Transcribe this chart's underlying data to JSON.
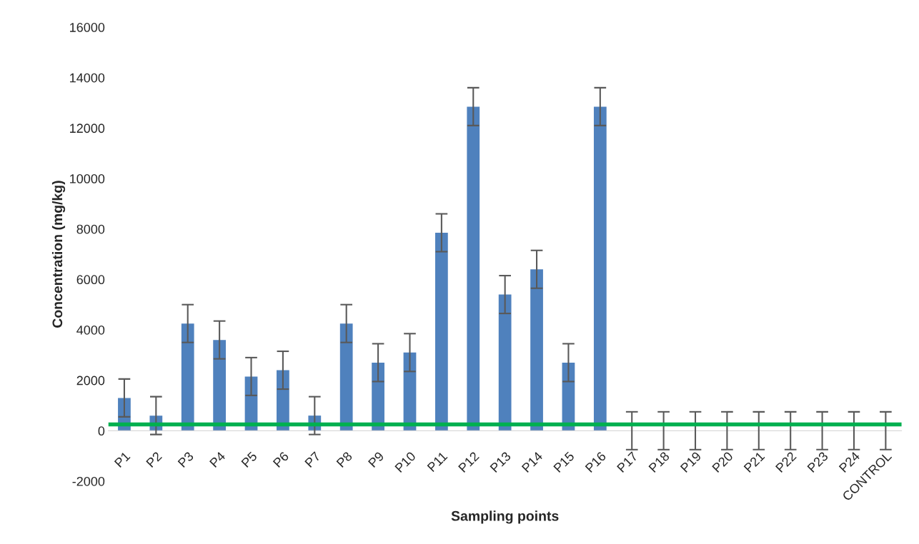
{
  "chart_data": {
    "type": "bar",
    "xlabel": "Sampling points",
    "ylabel": "Concentration (mg/kg)",
    "categories": [
      "P1",
      "P2",
      "P3",
      "P4",
      "P5",
      "P6",
      "P7",
      "P8",
      "P9",
      "P10",
      "P11",
      "P12",
      "P13",
      "P14",
      "P15",
      "P16",
      "P17",
      "P18",
      "P19",
      "P20",
      "P21",
      "P22",
      "P23",
      "P24",
      "CONTROL"
    ],
    "series": [
      {
        "color": "#4f81bd",
        "values": [
          1300,
          600,
          4250,
          3600,
          2150,
          2400,
          600,
          4250,
          2700,
          3100,
          7850,
          12850,
          5400,
          6400,
          2700,
          12850,
          0,
          0,
          0,
          0,
          0,
          0,
          0,
          0,
          0
        ],
        "errors": [
          750,
          750,
          750,
          750,
          750,
          750,
          750,
          750,
          750,
          750,
          750,
          750,
          750,
          750,
          750,
          750,
          750,
          750,
          750,
          750,
          750,
          750,
          750,
          750,
          750
        ]
      }
    ],
    "ref_lines": [
      {
        "axis": "y",
        "value": 250,
        "color": "#00b050",
        "line_style": "solid"
      }
    ],
    "ylim": [
      -2000,
      16000
    ],
    "yticks": [
      -2000,
      0,
      2000,
      4000,
      6000,
      8000,
      10000,
      12000,
      14000,
      16000
    ],
    "grid": false,
    "legend": false
  }
}
